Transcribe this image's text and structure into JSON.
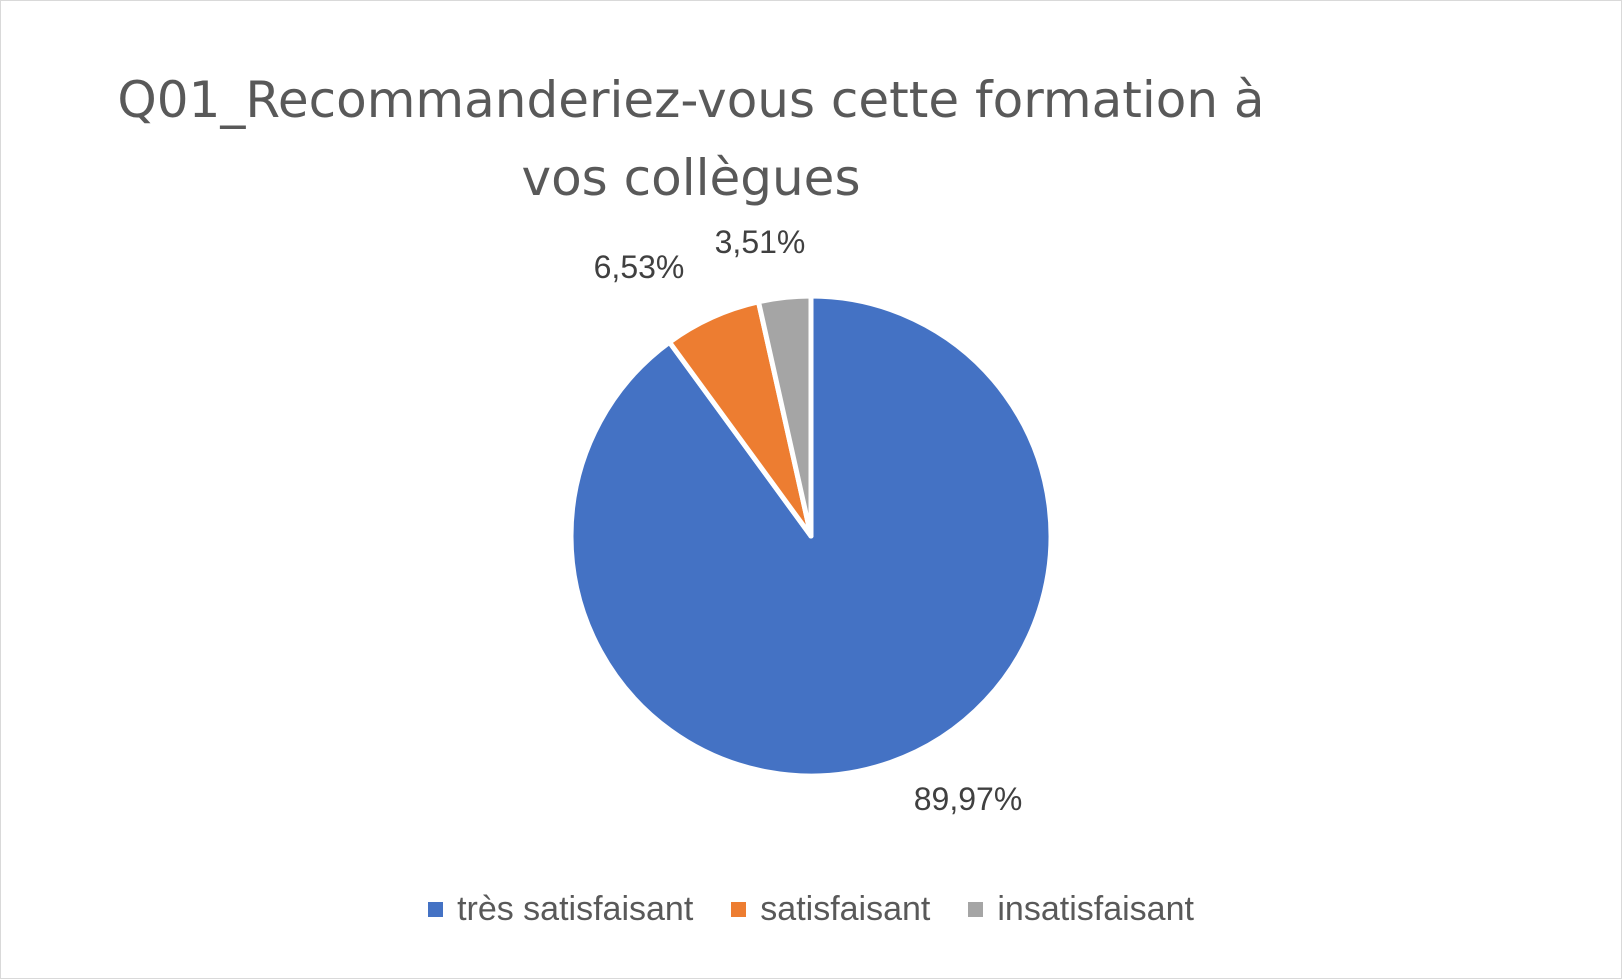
{
  "chart_data": {
    "type": "pie",
    "title_line1": "Q01_Recommanderiez-vous cette formation à",
    "title_line2": "vos collègues",
    "legend_position": "bottom",
    "slices": [
      {
        "label": "très satisfaisant",
        "value": 89.97,
        "display": "89,97%",
        "color": "#4472c4"
      },
      {
        "label": "satisfaisant",
        "value": 6.53,
        "display": "6,53%",
        "color": "#ed7d31"
      },
      {
        "label": "insatisfaisant",
        "value": 3.51,
        "display": "3,51%",
        "color": "#a5a5a5"
      }
    ]
  }
}
